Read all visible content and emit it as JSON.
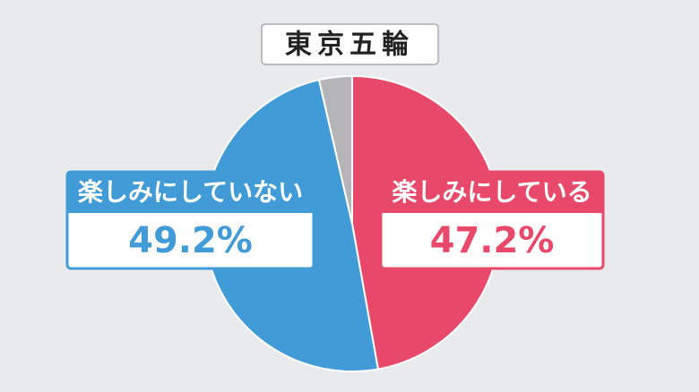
{
  "chart_data": {
    "type": "pie",
    "title": "東京五輪",
    "categories": [
      "楽しみにしている",
      "楽しみにしていない",
      null
    ],
    "values": [
      47.2,
      49.2,
      3.6
    ],
    "value_labels": [
      "47.2%",
      "49.2%",
      null
    ],
    "colors": [
      "#e8486a",
      "#419bd7",
      "#b5b5b7"
    ]
  }
}
